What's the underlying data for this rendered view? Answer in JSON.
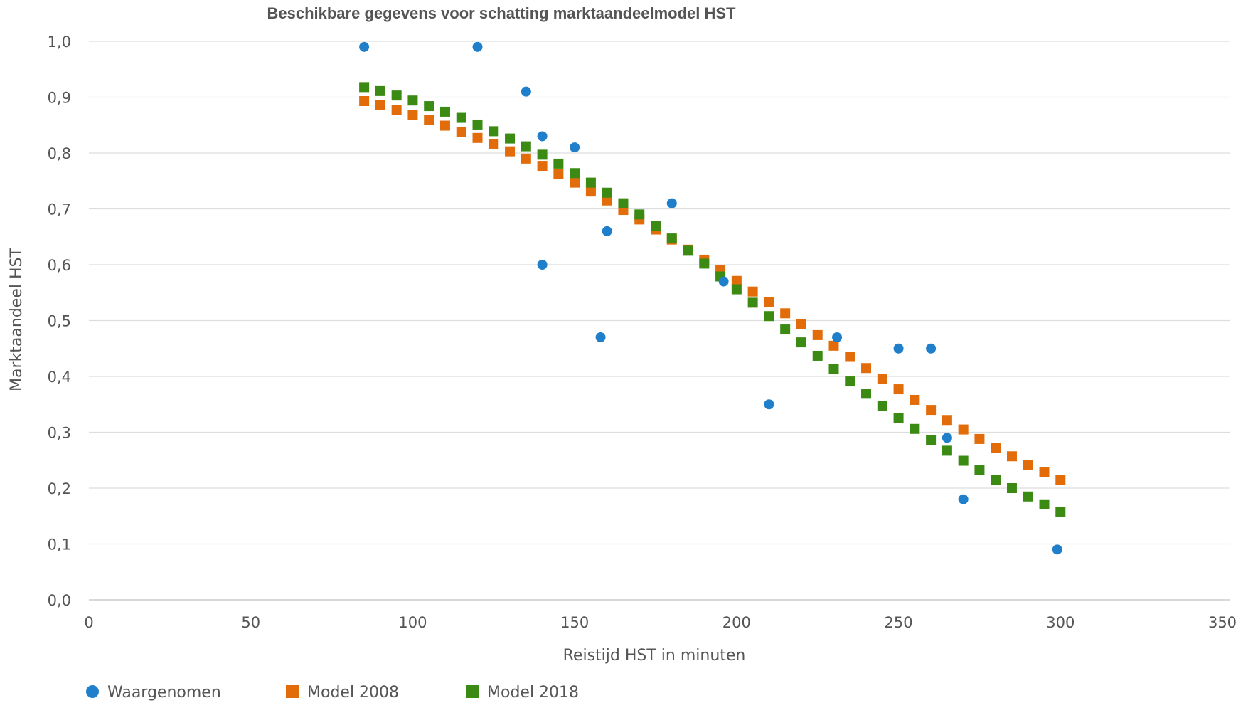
{
  "chart_data": {
    "type": "scatter",
    "title": "Beschikbare gegevens voor schatting marktaandeelmodel HST",
    "xlabel": "Reistijd HST in minuten",
    "ylabel": "Marktaandeel HST",
    "xlim": [
      0,
      350
    ],
    "ylim": [
      0,
      1.0
    ],
    "x_ticks": [
      0,
      50,
      100,
      150,
      200,
      250,
      300,
      350
    ],
    "x_tick_labels": [
      "0",
      "50",
      "100",
      "150",
      "200",
      "250",
      "300",
      "350"
    ],
    "y_ticks": [
      0,
      0.1,
      0.2,
      0.3,
      0.4,
      0.5,
      0.6,
      0.7,
      0.8,
      0.9,
      1.0
    ],
    "y_tick_labels": [
      "0,0",
      "0,1",
      "0,2",
      "0,3",
      "0,4",
      "0,5",
      "0,6",
      "0,7",
      "0,8",
      "0,9",
      "1,0"
    ],
    "grid": true,
    "legend_position": "bottom-left",
    "series": [
      {
        "name": "Waargenomen",
        "marker": "circle",
        "color": "#1f7fcb",
        "points": [
          [
            85,
            0.99
          ],
          [
            120,
            0.99
          ],
          [
            135,
            0.91
          ],
          [
            140,
            0.83
          ],
          [
            140,
            0.6
          ],
          [
            150,
            0.81
          ],
          [
            158,
            0.47
          ],
          [
            160,
            0.66
          ],
          [
            180,
            0.71
          ],
          [
            196,
            0.57
          ],
          [
            210,
            0.35
          ],
          [
            231,
            0.47
          ],
          [
            250,
            0.45
          ],
          [
            260,
            0.45
          ],
          [
            265,
            0.29
          ],
          [
            270,
            0.18
          ],
          [
            299,
            0.09
          ]
        ]
      },
      {
        "name": "Model 2008",
        "marker": "square",
        "color": "#e36c0a",
        "points": [
          [
            85,
            0.893
          ],
          [
            90,
            0.886
          ],
          [
            95,
            0.877
          ],
          [
            100,
            0.868
          ],
          [
            105,
            0.859
          ],
          [
            110,
            0.849
          ],
          [
            115,
            0.838
          ],
          [
            120,
            0.827
          ],
          [
            125,
            0.816
          ],
          [
            130,
            0.803
          ],
          [
            135,
            0.79
          ],
          [
            140,
            0.777
          ],
          [
            145,
            0.762
          ],
          [
            150,
            0.747
          ],
          [
            155,
            0.731
          ],
          [
            160,
            0.715
          ],
          [
            165,
            0.698
          ],
          [
            170,
            0.681
          ],
          [
            175,
            0.663
          ],
          [
            180,
            0.645
          ],
          [
            185,
            0.627
          ],
          [
            190,
            0.609
          ],
          [
            195,
            0.59
          ],
          [
            200,
            0.571
          ],
          [
            205,
            0.552
          ],
          [
            210,
            0.533
          ],
          [
            215,
            0.513
          ],
          [
            220,
            0.494
          ],
          [
            225,
            0.474
          ],
          [
            230,
            0.455
          ],
          [
            235,
            0.435
          ],
          [
            240,
            0.415
          ],
          [
            245,
            0.396
          ],
          [
            250,
            0.377
          ],
          [
            255,
            0.358
          ],
          [
            260,
            0.34
          ],
          [
            265,
            0.322
          ],
          [
            270,
            0.305
          ],
          [
            275,
            0.288
          ],
          [
            280,
            0.272
          ],
          [
            285,
            0.257
          ],
          [
            290,
            0.242
          ],
          [
            295,
            0.228
          ],
          [
            300,
            0.214
          ]
        ]
      },
      {
        "name": "Model 2018",
        "marker": "square",
        "color": "#3a8a14",
        "points": [
          [
            85,
            0.918
          ],
          [
            90,
            0.911
          ],
          [
            95,
            0.903
          ],
          [
            100,
            0.894
          ],
          [
            105,
            0.884
          ],
          [
            110,
            0.874
          ],
          [
            115,
            0.863
          ],
          [
            120,
            0.851
          ],
          [
            125,
            0.839
          ],
          [
            130,
            0.826
          ],
          [
            135,
            0.812
          ],
          [
            140,
            0.797
          ],
          [
            145,
            0.781
          ],
          [
            150,
            0.764
          ],
          [
            155,
            0.747
          ],
          [
            160,
            0.729
          ],
          [
            165,
            0.71
          ],
          [
            170,
            0.69
          ],
          [
            175,
            0.669
          ],
          [
            180,
            0.647
          ],
          [
            185,
            0.625
          ],
          [
            190,
            0.602
          ],
          [
            195,
            0.579
          ],
          [
            200,
            0.556
          ],
          [
            205,
            0.532
          ],
          [
            210,
            0.508
          ],
          [
            215,
            0.484
          ],
          [
            220,
            0.461
          ],
          [
            225,
            0.437
          ],
          [
            230,
            0.414
          ],
          [
            235,
            0.391
          ],
          [
            240,
            0.369
          ],
          [
            245,
            0.347
          ],
          [
            250,
            0.326
          ],
          [
            255,
            0.306
          ],
          [
            260,
            0.286
          ],
          [
            265,
            0.267
          ],
          [
            270,
            0.249
          ],
          [
            275,
            0.232
          ],
          [
            280,
            0.215
          ],
          [
            285,
            0.2
          ],
          [
            290,
            0.185
          ],
          [
            295,
            0.171
          ],
          [
            300,
            0.158
          ]
        ]
      }
    ]
  }
}
